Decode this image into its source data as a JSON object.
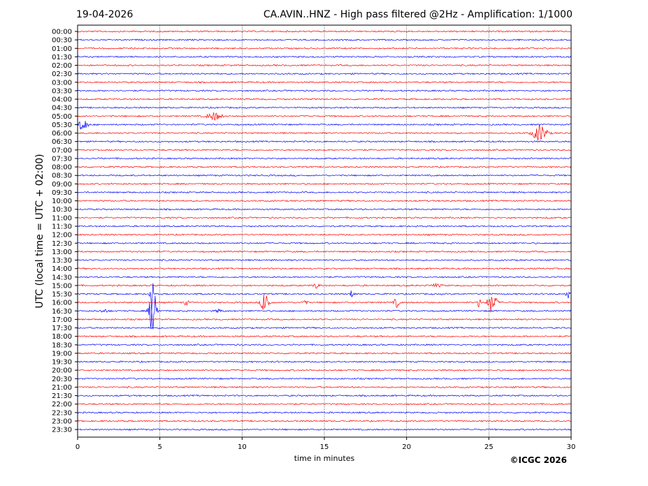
{
  "chart_data": {
    "type": "line",
    "date": "19-04-2026",
    "title": "CA.AVIN..HNZ - High pass filtered @2Hz - Amplification: 1/1000",
    "xlabel": "time in minutes",
    "ylabel": "UTC (local time = UTC + 02:00)",
    "copyright": "©ICGC 2026",
    "xlim": [
      0,
      30
    ],
    "x_ticks": [
      0,
      5,
      10,
      15,
      20,
      25,
      30
    ],
    "x_tick_labels": [
      "0",
      "5",
      "10",
      "15",
      "20",
      "25",
      "30"
    ],
    "grid": "vertical dotted lines at x ticks",
    "row_colors": [
      "#ff0000",
      "#0000ff"
    ],
    "rows": [
      "00:00",
      "00:30",
      "01:00",
      "01:30",
      "02:00",
      "02:30",
      "03:00",
      "03:30",
      "04:00",
      "04:30",
      "05:00",
      "05:30",
      "06:00",
      "06:30",
      "07:00",
      "07:30",
      "08:00",
      "08:30",
      "09:00",
      "09:30",
      "10:00",
      "10:30",
      "11:00",
      "11:30",
      "12:00",
      "12:30",
      "13:00",
      "13:30",
      "14:00",
      "14:30",
      "15:00",
      "15:30",
      "16:00",
      "16:30",
      "17:00",
      "17:30",
      "18:00",
      "18:30",
      "19:00",
      "19:30",
      "20:00",
      "20:30",
      "21:00",
      "21:30",
      "22:00",
      "22:30",
      "23:00",
      "23:30"
    ],
    "events": [
      {
        "row": "05:00",
        "minute": 8.3,
        "amplitude": 0.45,
        "duration": 1.2
      },
      {
        "row": "05:30",
        "minute": 0.3,
        "amplitude": 0.75,
        "duration": 0.8
      },
      {
        "row": "06:00",
        "minute": 28.1,
        "amplitude": 1.05,
        "duration": 1.1
      },
      {
        "row": "15:00",
        "minute": 14.5,
        "amplitude": 0.3,
        "duration": 0.5
      },
      {
        "row": "15:00",
        "minute": 21.8,
        "amplitude": 0.15,
        "duration": 1.0
      },
      {
        "row": "15:30",
        "minute": 4.5,
        "amplitude": 2.3,
        "duration": 0.3
      },
      {
        "row": "15:30",
        "minute": 16.7,
        "amplitude": 0.75,
        "duration": 0.3
      },
      {
        "row": "15:30",
        "minute": 29.8,
        "amplitude": 0.45,
        "duration": 0.4
      },
      {
        "row": "16:00",
        "minute": 11.4,
        "amplitude": 1.55,
        "duration": 0.6
      },
      {
        "row": "16:00",
        "minute": 19.4,
        "amplitude": 0.6,
        "duration": 0.4
      },
      {
        "row": "16:00",
        "minute": 25.2,
        "amplitude": 1.35,
        "duration": 0.7
      },
      {
        "row": "16:00",
        "minute": 24.4,
        "amplitude": 0.55,
        "duration": 0.3
      },
      {
        "row": "16:00",
        "minute": 13.8,
        "amplitude": 0.35,
        "duration": 0.4
      },
      {
        "row": "16:00",
        "minute": 6.6,
        "amplitude": 0.3,
        "duration": 0.4
      },
      {
        "row": "16:30",
        "minute": 4.6,
        "amplitude": 3.3,
        "duration": 0.6
      },
      {
        "row": "16:30",
        "minute": 1.6,
        "amplitude": 0.2,
        "duration": 0.6
      },
      {
        "row": "16:30",
        "minute": 8.6,
        "amplitude": 0.2,
        "duration": 0.5
      }
    ]
  }
}
